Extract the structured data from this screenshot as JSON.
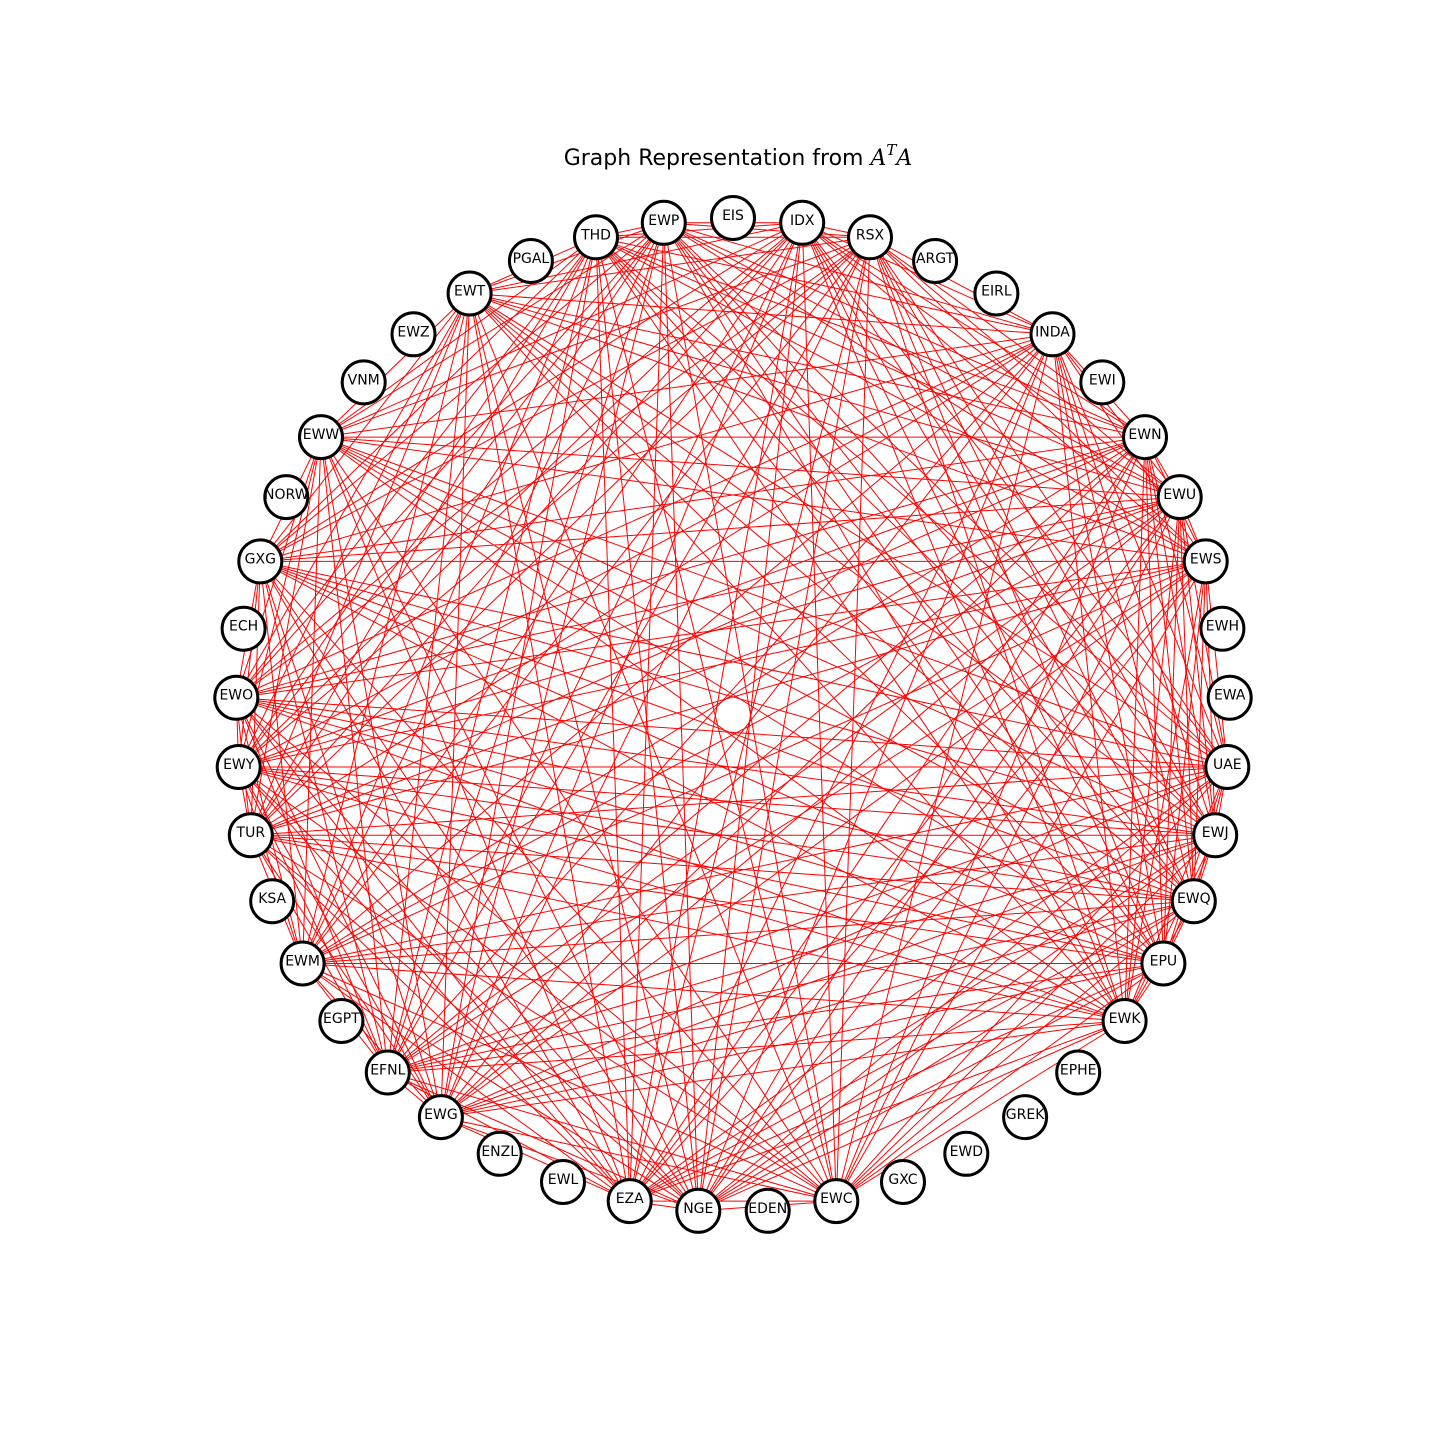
{
  "title": {
    "prefix": "Graph Representation from ",
    "math_base": "A",
    "math_sup": "T",
    "math_tail": "A"
  },
  "colors": {
    "edge": "#ff0000",
    "node_fill": "#ffffff",
    "node_stroke": "#000000"
  },
  "nodes": [
    "EWC",
    "EDEN",
    "NGE",
    "EZA",
    "EWL",
    "ENZL",
    "EWG",
    "EFNL",
    "EGPT",
    "EWM",
    "KSA",
    "TUR",
    "EWY",
    "EWO",
    "ECH",
    "GXG",
    "NORW",
    "EWW",
    "VNM",
    "EWZ",
    "EWT",
    "PGAL",
    "THD",
    "EWP",
    "EIS",
    "IDX",
    "RSX",
    "ARGT",
    "EIRL",
    "INDA",
    "EWI",
    "EWN",
    "EWU",
    "EWS",
    "EWH",
    "EWA",
    "UAE",
    "EWJ",
    "EWQ",
    "EPU",
    "EWK",
    "EPHE",
    "GREK",
    "EWD",
    "GXC"
  ],
  "hub_nodes": [
    "EWC",
    "NGE",
    "EZA",
    "EWG",
    "EFNL",
    "EWM",
    "TUR",
    "EWY",
    "EWO",
    "GXG",
    "EWW",
    "EWT",
    "THD",
    "EWP",
    "IDX",
    "RSX",
    "INDA",
    "EWN",
    "EWU",
    "EWS",
    "UAE",
    "EWJ",
    "EWQ",
    "EPU",
    "EWK"
  ]
}
